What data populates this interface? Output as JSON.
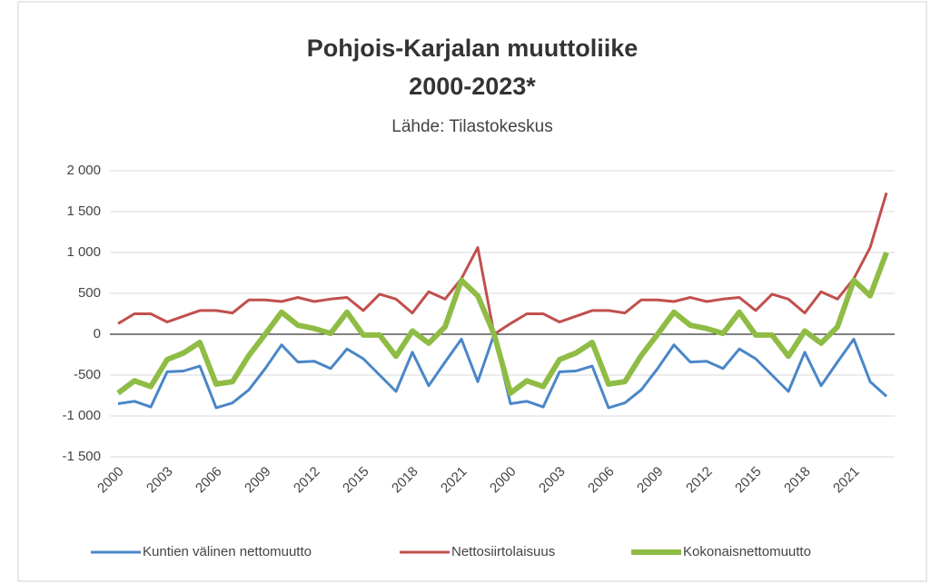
{
  "chart_data": {
    "type": "line",
    "title": [
      "Pohjois-Karjalan muuttoliike",
      "2000-2023*"
    ],
    "subtitle": "Lähde: Tilastokeskus",
    "categories": [
      "2000",
      null,
      null,
      "2003",
      null,
      null,
      "2006",
      null,
      null,
      "2009",
      null,
      null,
      "2012",
      null,
      null,
      "2015",
      null,
      null,
      "2018",
      null,
      null,
      "2021",
      null,
      null,
      "2000",
      null,
      null,
      "2003",
      null,
      null,
      "2006",
      null,
      null,
      "2009",
      null,
      null,
      "2012",
      null,
      null,
      "2015",
      null,
      null,
      "2018",
      null,
      null,
      "2021",
      null,
      null
    ],
    "series": [
      {
        "name": "Kuntien välinen nettomuutto",
        "color": "#4a86c8",
        "values": [
          -850,
          -820,
          -890,
          -460,
          -450,
          -390,
          -900,
          -840,
          -680,
          -420,
          -130,
          -340,
          -330,
          -420,
          -180,
          -300,
          -500,
          -700,
          -220,
          -630,
          -340,
          -60,
          -580,
          0,
          -850,
          -820,
          -890,
          -460,
          -450,
          -390,
          -900,
          -840,
          -680,
          -420,
          -130,
          -340,
          -330,
          -420,
          -180,
          -300,
          -500,
          -700,
          -220,
          -630,
          -340,
          -60,
          -580,
          -760
        ]
      },
      {
        "name": "Nettosiirtolaisuus",
        "color": "#c0504d",
        "values": [
          130,
          250,
          250,
          150,
          220,
          290,
          290,
          260,
          420,
          420,
          400,
          450,
          400,
          430,
          450,
          290,
          490,
          430,
          260,
          520,
          430,
          680,
          1060,
          0,
          130,
          250,
          250,
          150,
          220,
          290,
          290,
          260,
          420,
          420,
          400,
          450,
          400,
          430,
          450,
          290,
          490,
          430,
          260,
          520,
          430,
          680,
          1060,
          1730
        ]
      },
      {
        "name": "Kokonaisnettomuutto",
        "color": "#8fbc45",
        "values": [
          -720,
          -570,
          -640,
          -310,
          -230,
          -100,
          -610,
          -580,
          -260,
          0,
          270,
          110,
          70,
          10,
          270,
          -10,
          -10,
          -270,
          40,
          -110,
          90,
          660,
          470,
          0,
          -720,
          -570,
          -640,
          -310,
          -230,
          -100,
          -610,
          -580,
          -260,
          0,
          270,
          110,
          70,
          10,
          270,
          -10,
          -10,
          -270,
          40,
          -110,
          90,
          660,
          470,
          1000
        ]
      }
    ],
    "ylim": [
      -1500,
      2000
    ],
    "yticks": [
      {
        "value": -1500,
        "label": "-1 500"
      },
      {
        "value": -1000,
        "label": "-1 000"
      },
      -500,
      0,
      500,
      {
        "value": 1000,
        "label": "1 000"
      },
      {
        "value": 1500,
        "label": "1 500"
      },
      {
        "value": 2000,
        "label": "2 000"
      }
    ],
    "grid": true,
    "legend": "bottom"
  }
}
